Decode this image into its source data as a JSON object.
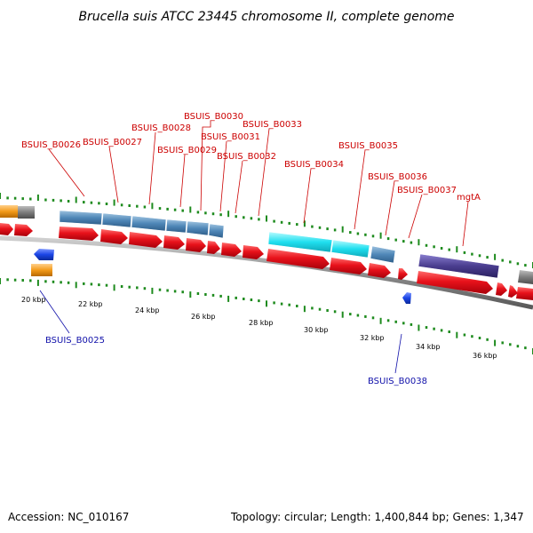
{
  "title": "Brucella suis ATCC 23445 chromosome II, complete genome",
  "footer": {
    "accession": "Accession: NC_010167",
    "summary": "Topology: circular; Length: 1,400,844 bp; Genes: 1,347"
  },
  "colors": {
    "cds": "#e8121b",
    "gene_steelblue": "#4f87b8",
    "gene_cyan": "#1fdfef",
    "gene_navy": "#4a3d8f",
    "gene_orange": "#f39a1a",
    "gene_gray": "#7d7d7d",
    "gene_blue": "#1b45e6",
    "tick": "#1e8b1e",
    "label_top": "#cc0000",
    "label_bottom": "#1111aa"
  },
  "tick_labels": [
    "20 kbp",
    "22 kbp",
    "24 kbp",
    "26 kbp",
    "28 kbp",
    "30 kbp",
    "32 kbp",
    "34 kbp",
    "36 kbp"
  ],
  "top_labels": [
    "BSUIS_B0026",
    "BSUIS_B0027",
    "BSUIS_B0028",
    "BSUIS_B0029",
    "BSUIS_B0030",
    "BSUIS_B0031",
    "BSUIS_B0032",
    "BSUIS_B0033",
    "BSUIS_B0034",
    "BSUIS_B0035",
    "BSUIS_B0036",
    "BSUIS_B0037",
    "mgtA"
  ],
  "bottom_labels": [
    "BSUIS_B0025",
    "BSUIS_B0038"
  ]
}
